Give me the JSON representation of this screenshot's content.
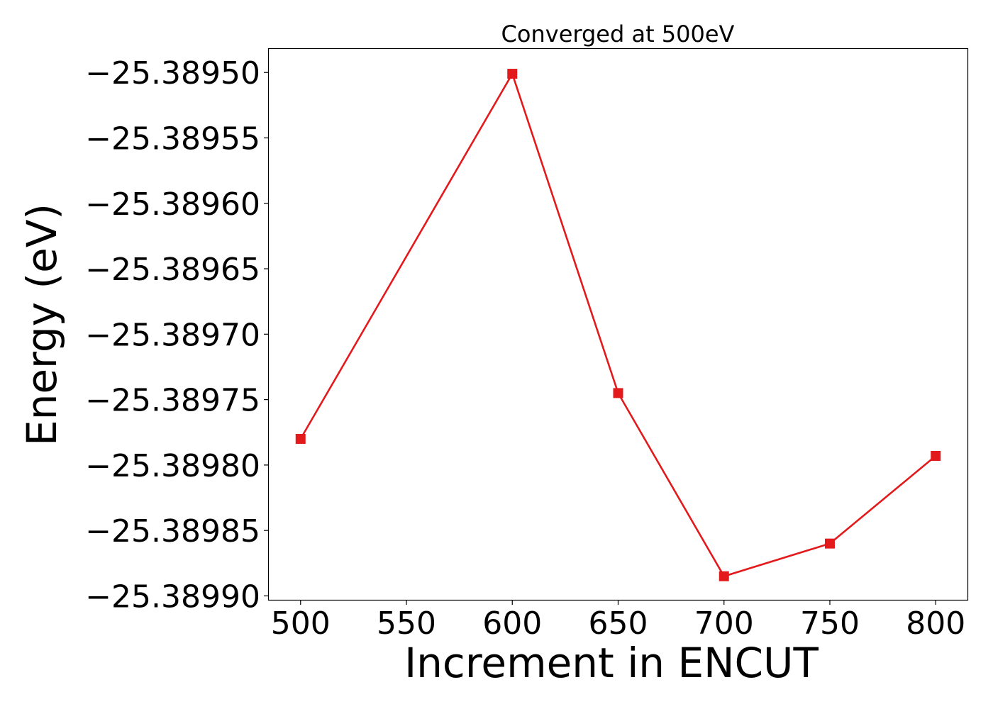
{
  "chart_data": {
    "type": "line",
    "title": "Converged at 500eV",
    "xlabel": "Increment in ENCUT",
    "ylabel": "Energy (eV)",
    "x": [
      500,
      600,
      650,
      700,
      750,
      800
    ],
    "series": [
      {
        "values": [
          -25.38978,
          -25.389501,
          -25.389745,
          -25.389885,
          -25.38986,
          -25.389793
        ],
        "color": "#e31a1c",
        "marker": "square"
      }
    ],
    "xticks": [
      500,
      550,
      600,
      650,
      700,
      750,
      800
    ],
    "xtick_labels": [
      "500",
      "550",
      "600",
      "650",
      "700",
      "750",
      "800"
    ],
    "yticks": [
      -25.3895,
      -25.38955,
      -25.3896,
      -25.38965,
      -25.3897,
      -25.38975,
      -25.3898,
      -25.38985,
      -25.3899
    ],
    "ytick_labels": [
      "−25.38950",
      "−25.38955",
      "−25.38960",
      "−25.38965",
      "−25.38970",
      "−25.38975",
      "−25.38980",
      "−25.38985",
      "−25.38990"
    ],
    "xlim": [
      485,
      815
    ],
    "ylim": [
      -25.389903,
      -25.389482
    ],
    "grid": false,
    "legend": false
  }
}
